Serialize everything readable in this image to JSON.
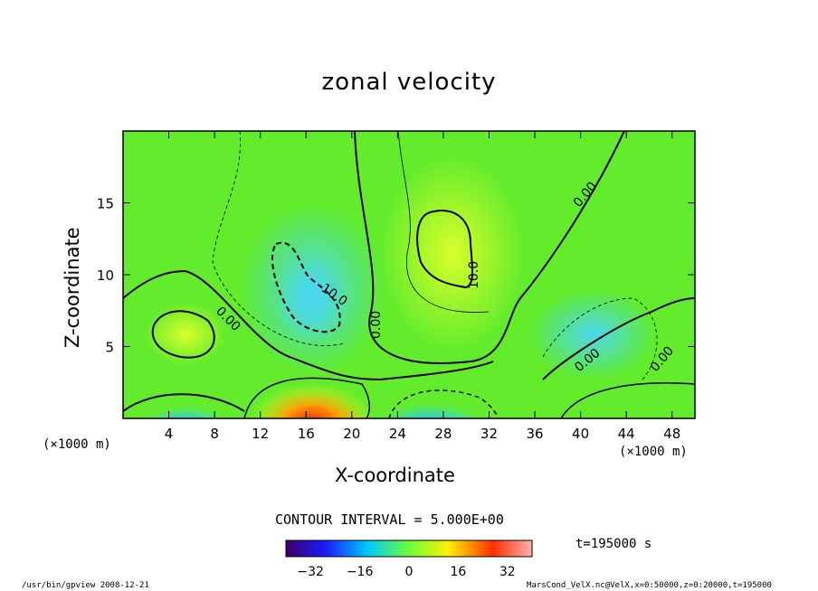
{
  "chart_data": {
    "type": "heatmap",
    "title": "zonal velocity",
    "xlabel": "X-coordinate",
    "ylabel": "Z-coordinate",
    "x_unit": "(×1000 m)",
    "y_unit": "(×1000 m)",
    "x_ticks": [
      4,
      8,
      12,
      16,
      20,
      24,
      28,
      32,
      36,
      40,
      44,
      48
    ],
    "y_ticks": [
      5,
      10,
      15
    ],
    "xlim": [
      0,
      50
    ],
    "ylim": [
      0,
      20
    ],
    "contour_labels": [
      "0.00",
      "0.00",
      "0.00",
      "0.00",
      "0.00",
      "-10.0",
      "10.0"
    ],
    "contour_interval_text": "CONTOUR INTERVAL = 5.000E+00",
    "colorbar_ticks": [
      -32,
      -16,
      0,
      16,
      32
    ],
    "colorbar_range": [
      -40,
      40
    ],
    "time_label": "t=195000  s",
    "colormap": [
      "#3b0068",
      "#1a1aff",
      "#00c8ff",
      "#6cff38",
      "#fff000",
      "#ff3000",
      "#ffb0b0"
    ]
  },
  "footer": {
    "left": "/usr/bin/gpview  2008-12-21",
    "right": "MarsCond_VelX.nc@VelX,x=0:50000,z=0:20000,t=195000"
  }
}
